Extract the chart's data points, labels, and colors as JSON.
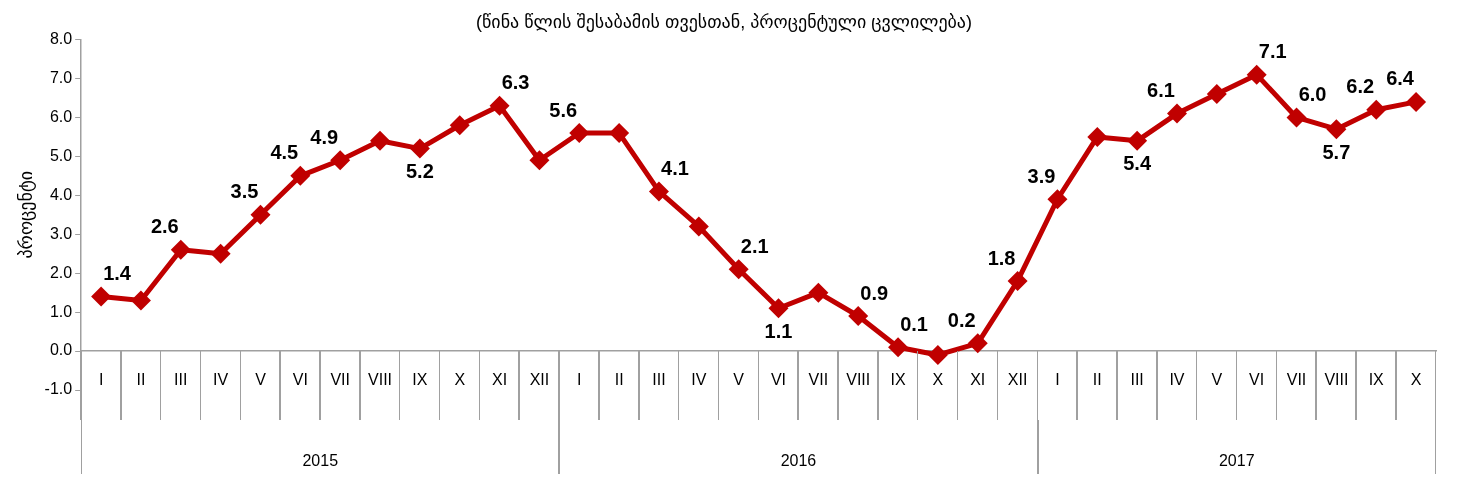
{
  "chart_data": {
    "type": "line",
    "subtitle": "(წინა წლის შესაბამის თვესთან, პროცენტული ცვლილება)",
    "ylabel": "პროცენტი",
    "categories": [
      "I",
      "II",
      "III",
      "IV",
      "V",
      "VI",
      "VII",
      "VIII",
      "IX",
      "X",
      "XI",
      "XII",
      "I",
      "II",
      "III",
      "IV",
      "V",
      "VI",
      "VII",
      "VIII",
      "IX",
      "X",
      "XI",
      "XII",
      "I",
      "II",
      "III",
      "IV",
      "V",
      "VI",
      "VII",
      "VIII",
      "IX",
      "X"
    ],
    "series": [
      {
        "color": "#c00000",
        "values": [
          1.4,
          1.3,
          2.6,
          2.5,
          3.5,
          4.5,
          4.9,
          5.4,
          5.2,
          5.8,
          6.3,
          4.9,
          5.6,
          5.6,
          4.1,
          3.2,
          2.1,
          1.1,
          1.5,
          0.9,
          0.1,
          -0.1,
          0.2,
          1.8,
          3.9,
          5.5,
          5.4,
          6.1,
          6.6,
          7.1,
          6.0,
          5.7,
          6.2,
          6.4
        ],
        "value_labels": [
          "1.4",
          null,
          "2.6",
          null,
          "3.5",
          "4.5",
          "4.9",
          null,
          "5.2",
          null,
          "6.3",
          null,
          "5.6",
          null,
          "4.1",
          null,
          "2.1",
          "1.1",
          null,
          "0.9",
          "0.1",
          null,
          "0.2",
          "1.8",
          "3.9",
          null,
          "5.4",
          "6.1",
          null,
          "7.1",
          "6.0",
          "5.7",
          "6.2",
          "6.4"
        ]
      }
    ],
    "annotations": [
      "2015",
      "2016",
      "2017"
    ],
    "ylim": [
      -1,
      8
    ],
    "yticks": [
      {
        "value": -1,
        "label": "-1.0"
      },
      {
        "value": 0,
        "label": "0.0"
      },
      {
        "value": 1,
        "label": "1.0"
      },
      {
        "value": 2,
        "label": "2.0"
      },
      {
        "value": 3,
        "label": "3.0"
      },
      {
        "value": 4,
        "label": "4.0"
      },
      {
        "value": 5,
        "label": "5.0"
      },
      {
        "value": 6,
        "label": "6.0"
      },
      {
        "value": 7,
        "label": "7.0"
      },
      {
        "value": 8,
        "label": "8.0"
      }
    ],
    "grid": false,
    "legend": false,
    "marker": "diamond",
    "line_style": "solid"
  }
}
